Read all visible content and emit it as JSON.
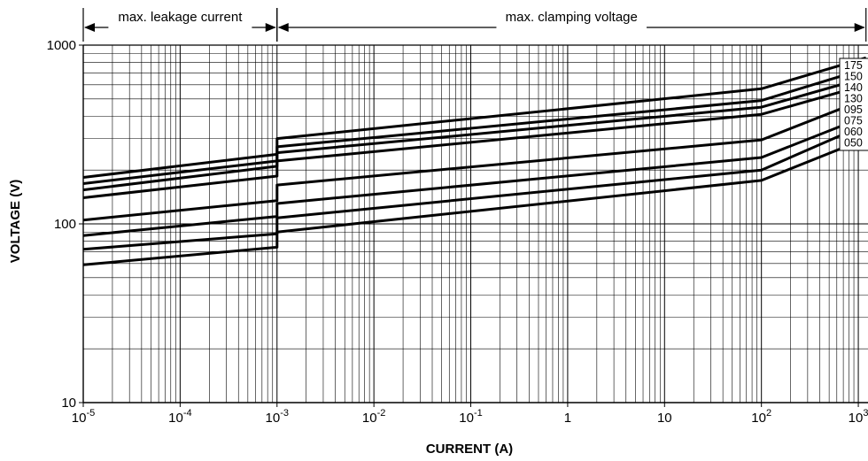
{
  "chart_data": {
    "type": "line",
    "xlabel": "CURRENT (A)",
    "ylabel": "VOLTAGE (V)",
    "x_scale": "log",
    "y_scale": "log",
    "xlim": [
      1e-05,
      1259
    ],
    "ylim": [
      10,
      1000
    ],
    "grid": true,
    "x_ticks": [
      {
        "base": "10",
        "exp": "-5"
      },
      {
        "base": "10",
        "exp": "-4"
      },
      {
        "base": "10",
        "exp": "-3"
      },
      {
        "base": "10",
        "exp": "-2"
      },
      {
        "base": "10",
        "exp": "-1"
      },
      {
        "base": "1",
        "exp": ""
      },
      {
        "base": "10",
        "exp": ""
      },
      {
        "base": "10",
        "exp": "2"
      },
      {
        "base": "10",
        "exp": "3"
      }
    ],
    "y_ticks": [
      "10",
      "100",
      "1000"
    ],
    "regions": [
      {
        "label": "max. leakage current",
        "x_from": 1e-05,
        "x_to": 0.001
      },
      {
        "label": "max. clamping voltage",
        "x_from": 0.001,
        "x_to": 1200
      }
    ],
    "series": [
      {
        "name": "175",
        "x": [
          1e-05,
          0.001,
          0.001,
          100,
          1200
        ],
        "y": [
          182,
          245,
          300,
          570,
          850
        ]
      },
      {
        "name": "150",
        "x": [
          1e-05,
          0.001,
          0.001,
          100,
          1200
        ],
        "y": [
          168,
          225,
          270,
          490,
          740
        ]
      },
      {
        "name": "140",
        "x": [
          1e-05,
          0.001,
          0.001,
          100,
          1200
        ],
        "y": [
          155,
          210,
          250,
          450,
          660
        ]
      },
      {
        "name": "130",
        "x": [
          1e-05,
          0.001,
          0.001,
          100,
          1200
        ],
        "y": [
          140,
          185,
          225,
          410,
          600
        ]
      },
      {
        "name": "095",
        "x": [
          1e-05,
          0.001,
          0.001,
          100,
          1200
        ],
        "y": [
          105,
          135,
          165,
          295,
          500
        ]
      },
      {
        "name": "075",
        "x": [
          1e-05,
          0.001,
          0.001,
          100,
          1200
        ],
        "y": [
          86,
          110,
          130,
          235,
          400
        ]
      },
      {
        "name": "060",
        "x": [
          1e-05,
          0.001,
          0.001,
          100,
          1200
        ],
        "y": [
          72,
          88,
          108,
          200,
          360
        ]
      },
      {
        "name": "050",
        "x": [
          1e-05,
          0.001,
          0.001,
          100,
          1200
        ],
        "y": [
          59,
          74,
          90,
          175,
          300
        ]
      }
    ],
    "colors": {
      "line": "#000000",
      "grid": "#000000",
      "background": "#ffffff"
    }
  }
}
